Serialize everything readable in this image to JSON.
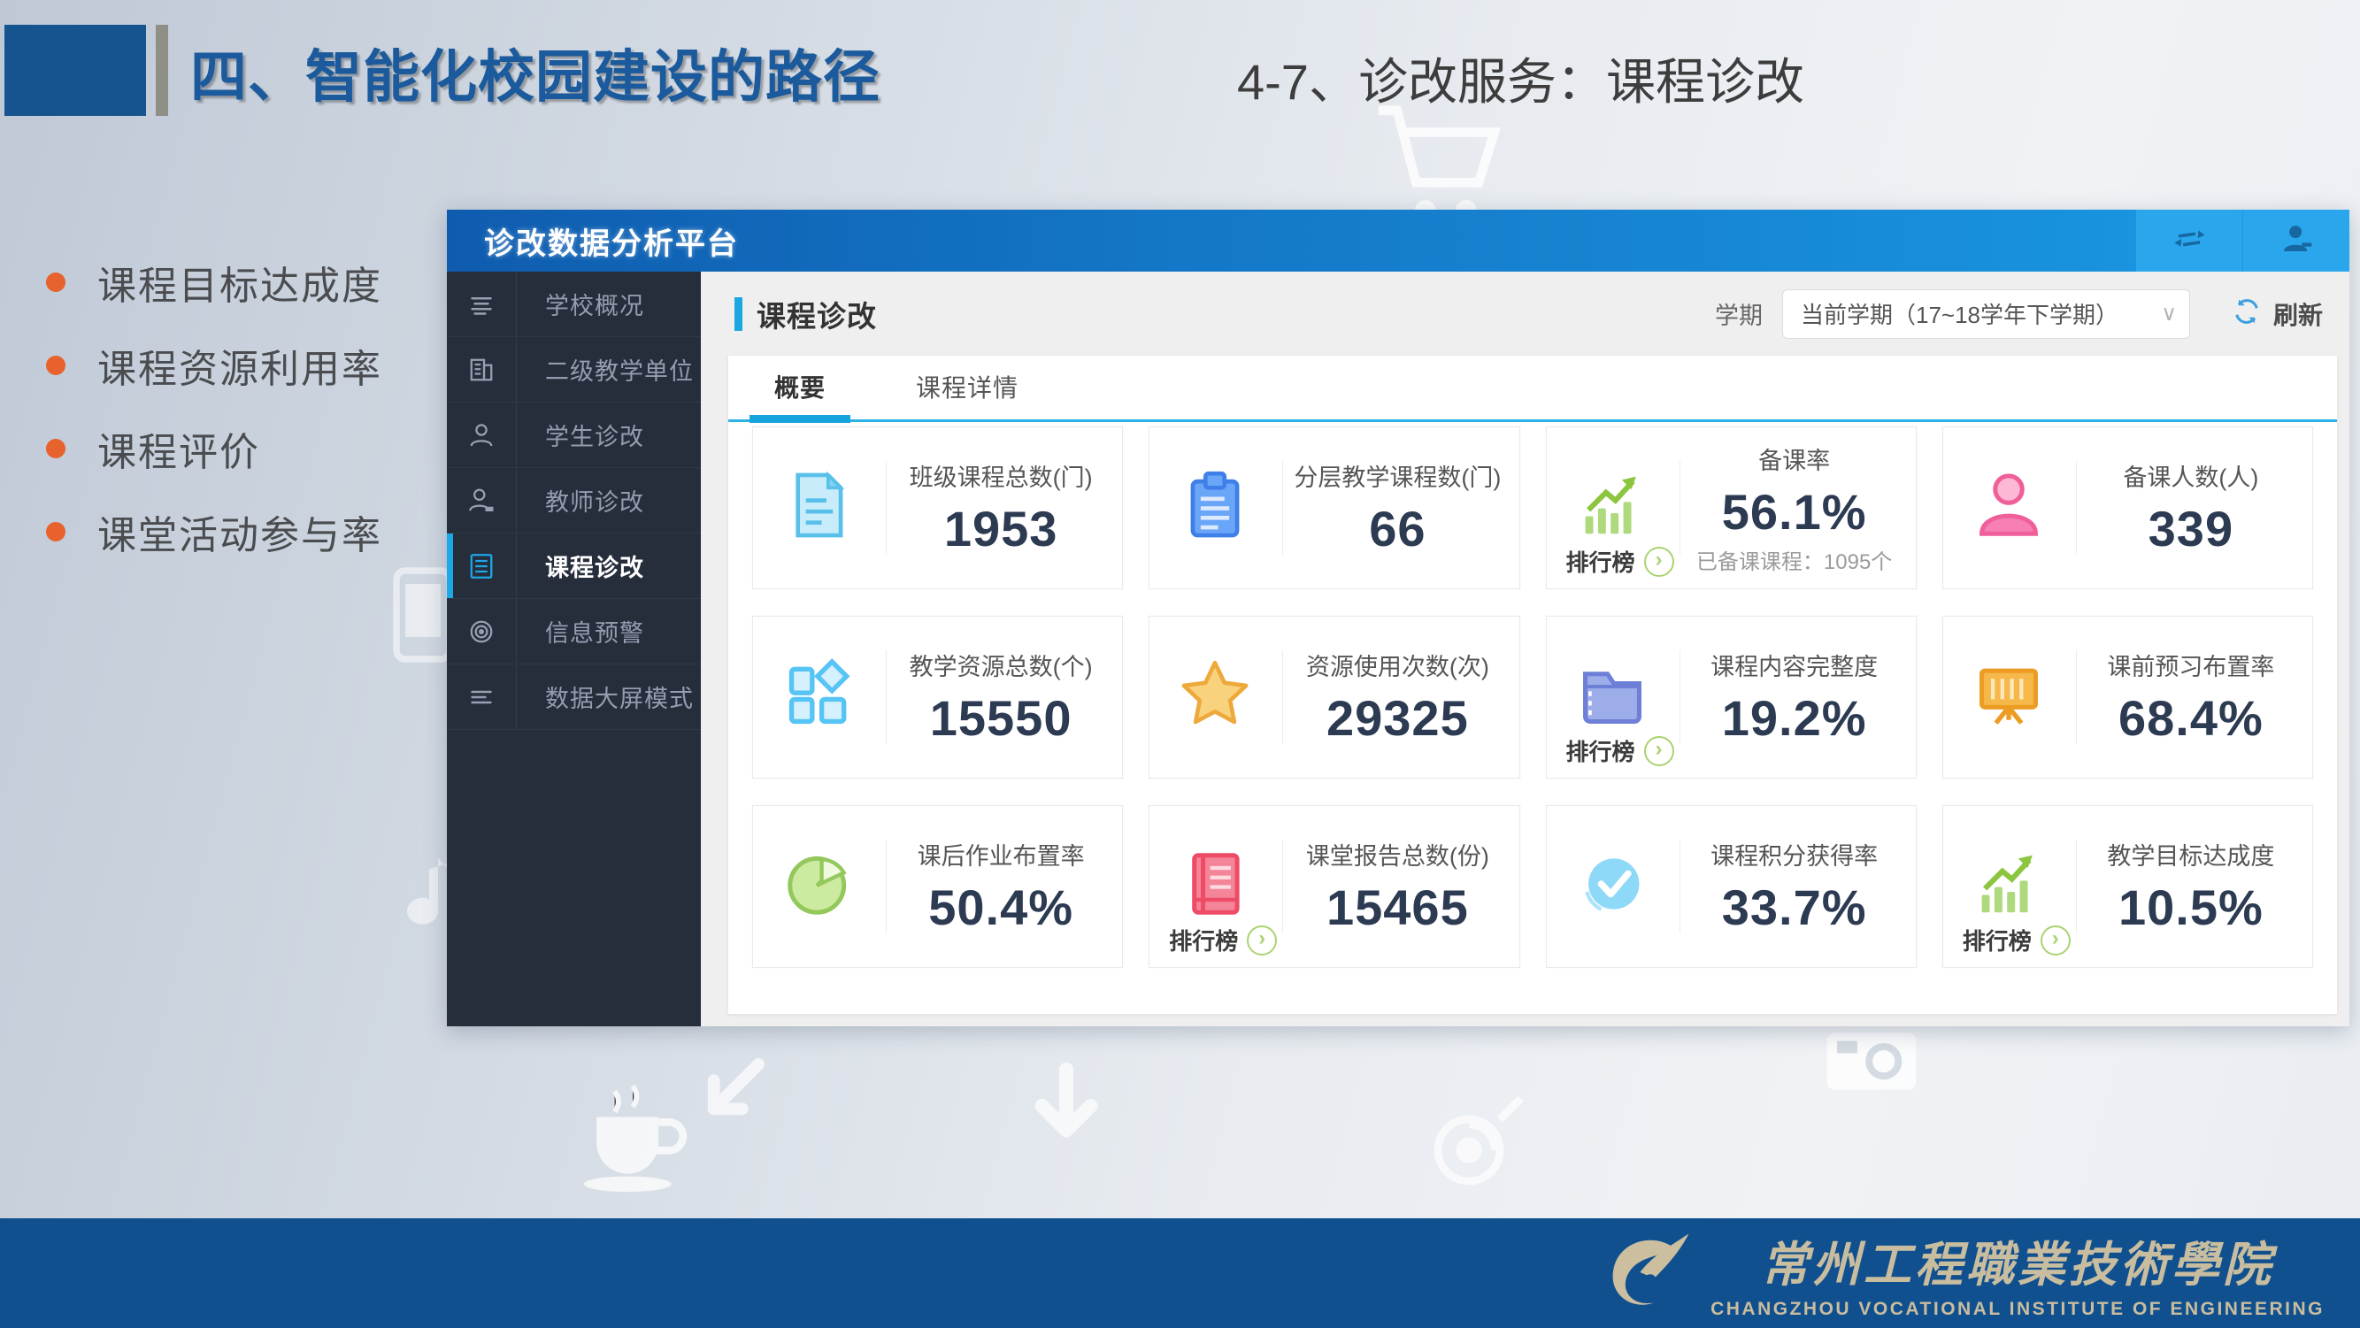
{
  "slide": {
    "title": "四、智能化校园建设的路径",
    "subtitle": "4-7、诊改服务：课程诊改",
    "bullets": [
      {
        "text": "课程目标达成度"
      },
      {
        "text": "课程资源利用率"
      },
      {
        "text": "课程评价"
      },
      {
        "text": "课堂活动参与率"
      }
    ],
    "footer": {
      "name_zh": "常州工程職業技術學院",
      "name_en": "CHANGZHOU VOCATIONAL INSTITUTE OF ENGINEERING"
    }
  },
  "dashboard": {
    "brand": "诊改数据分析平台",
    "sidebar": [
      {
        "label": "学校概况",
        "icon": "menu-lines",
        "active": false
      },
      {
        "label": "二级教学单位",
        "icon": "building",
        "active": false
      },
      {
        "label": "学生诊改",
        "icon": "person",
        "active": false
      },
      {
        "label": "教师诊改",
        "icon": "person-badge",
        "active": false
      },
      {
        "label": "课程诊改",
        "icon": "doc-lines",
        "active": true
      },
      {
        "label": "信息预警",
        "icon": "target",
        "active": false
      },
      {
        "label": "数据大屏模式",
        "icon": "screen-lines",
        "active": false
      }
    ],
    "page_title": "课程诊改",
    "toolbar": {
      "semester_label": "学期",
      "semester_value": "当前学期（17~18学年下学期）",
      "refresh_label": "刷新"
    },
    "tabs": [
      {
        "label": "概要",
        "active": true
      },
      {
        "label": "课程详情",
        "active": false
      }
    ],
    "rank_label": "排行榜",
    "cards": [
      {
        "label": "班级课程总数(门)",
        "value": "1953",
        "icon": "document",
        "rank": false,
        "sub": ""
      },
      {
        "label": "分层教学课程数(门)",
        "value": "66",
        "icon": "clipboard",
        "rank": false,
        "sub": ""
      },
      {
        "label": "备课率",
        "value": "56.1%",
        "icon": "chart-up",
        "rank": true,
        "sub": "已备课课程：1095个"
      },
      {
        "label": "备课人数(人)",
        "value": "339",
        "icon": "person-pink",
        "rank": false,
        "sub": ""
      },
      {
        "label": "教学资源总数(个)",
        "value": "15550",
        "icon": "blocks",
        "rank": false,
        "sub": ""
      },
      {
        "label": "资源使用次数(次)",
        "value": "29325",
        "icon": "star",
        "rank": false,
        "sub": ""
      },
      {
        "label": "课程内容完整度",
        "value": "19.2%",
        "icon": "folder",
        "rank": true,
        "sub": ""
      },
      {
        "label": "课前预习布置率",
        "value": "68.4%",
        "icon": "easel",
        "rank": false,
        "sub": ""
      },
      {
        "label": "课后作业布置率",
        "value": "50.4%",
        "icon": "pie",
        "rank": false,
        "sub": ""
      },
      {
        "label": "课堂报告总数(份)",
        "value": "15465",
        "icon": "book",
        "rank": true,
        "sub": ""
      },
      {
        "label": "课程积分获得率",
        "value": "33.7%",
        "icon": "check-circle",
        "rank": false,
        "sub": ""
      },
      {
        "label": "教学目标达成度",
        "value": "10.5%",
        "icon": "chart-up",
        "rank": true,
        "sub": ""
      }
    ],
    "colors": {
      "topbar_gradient_start": "#0f5caf",
      "topbar_gradient_end": "#1a9ae4",
      "sidebar_bg": "#262d3b",
      "active_accent": "#1da8e8",
      "tab_underline": "#17a3dc",
      "footer_bar": "#11508f",
      "bullet_dot": "#e8622d",
      "title_blue": "#1b5a9c"
    }
  }
}
